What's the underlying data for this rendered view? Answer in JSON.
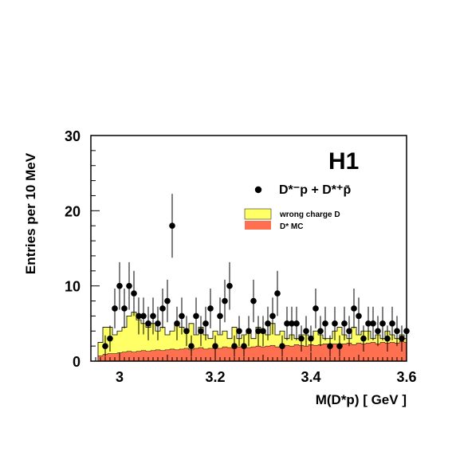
{
  "chart_data": {
    "type": "histogram",
    "experiment_label": "H1",
    "xlabel": "M(D*p) [ GeV ]",
    "ylabel": "Entries per 10 MeV",
    "xlim": [
      2.94,
      3.6
    ],
    "ylim": [
      0,
      30
    ],
    "x_ticks": [
      {
        "value": 3.0,
        "label": "3"
      },
      {
        "value": 3.2,
        "label": "3.2"
      },
      {
        "value": 3.4,
        "label": "3.4"
      },
      {
        "value": 3.6,
        "label": "3.6"
      }
    ],
    "y_ticks": [
      {
        "value": 0,
        "label": "0"
      },
      {
        "value": 10,
        "label": "10"
      },
      {
        "value": 20,
        "label": "20"
      },
      {
        "value": 30,
        "label": "30"
      }
    ],
    "legend": {
      "data": "D*⁻p + D*⁺p̄",
      "wrong_charge": "wrong charge D",
      "mc": "D* MC"
    },
    "colors": {
      "wrong_charge_fill": "#ffff66",
      "mc_fill": "#ff7050",
      "data_marker": "#000000"
    },
    "bin_edges": [
      2.955,
      2.965,
      2.975,
      2.985,
      2.995,
      3.005,
      3.015,
      3.025,
      3.035,
      3.045,
      3.055,
      3.065,
      3.075,
      3.085,
      3.095,
      3.105,
      3.115,
      3.125,
      3.135,
      3.145,
      3.155,
      3.165,
      3.175,
      3.185,
      3.195,
      3.205,
      3.215,
      3.225,
      3.235,
      3.245,
      3.255,
      3.265,
      3.275,
      3.285,
      3.295,
      3.305,
      3.315,
      3.325,
      3.335,
      3.345,
      3.355,
      3.365,
      3.375,
      3.385,
      3.395,
      3.405,
      3.415,
      3.425,
      3.435,
      3.445,
      3.455,
      3.465,
      3.475,
      3.485,
      3.495,
      3.505,
      3.515,
      3.525,
      3.535,
      3.545,
      3.555,
      3.565,
      3.575,
      3.585,
      3.595,
      3.6
    ],
    "wrong_charge": [
      2.5,
      4.5,
      4.5,
      3.5,
      4.0,
      4.5,
      6.0,
      6.5,
      5.5,
      5.0,
      4.5,
      5.0,
      4.0,
      4.5,
      3.5,
      4.0,
      5.0,
      4.5,
      4.0,
      5.0,
      3.5,
      4.5,
      3.5,
      3.0,
      4.0,
      3.5,
      4.0,
      3.0,
      4.5,
      3.0,
      3.5,
      4.0,
      3.0,
      4.5,
      4.0,
      3.5,
      5.0,
      3.5,
      4.0,
      3.0,
      3.5,
      3.0,
      3.5,
      3.5,
      3.0,
      4.0,
      3.5,
      3.0,
      3.0,
      4.0,
      4.5,
      3.5,
      3.0,
      4.5,
      3.5,
      4.0,
      4.0,
      3.0,
      3.5,
      3.0,
      4.0,
      3.5,
      3.0,
      3.5,
      3.0
    ],
    "mc": [
      0.7,
      0.9,
      1.0,
      1.0,
      1.1,
      1.2,
      1.3,
      1.2,
      1.3,
      1.4,
      1.3,
      1.4,
      1.5,
      1.4,
      1.5,
      1.6,
      1.5,
      1.6,
      1.7,
      1.5,
      1.7,
      1.8,
      1.6,
      1.7,
      1.8,
      1.7,
      1.9,
      1.8,
      1.7,
      1.9,
      2.0,
      1.8,
      1.9,
      2.0,
      1.9,
      2.0,
      2.1,
      1.9,
      2.0,
      2.1,
      2.0,
      2.2,
      2.1,
      2.0,
      2.2,
      2.1,
      2.2,
      2.3,
      2.1,
      2.3,
      2.2,
      2.3,
      2.4,
      2.2,
      2.4,
      2.3,
      2.4,
      2.5,
      2.3,
      2.5,
      2.4,
      2.5,
      2.4,
      2.6,
      2.5
    ],
    "data_points": [
      {
        "x": 2.97,
        "y": 2
      },
      {
        "x": 2.98,
        "y": 3
      },
      {
        "x": 2.99,
        "y": 7
      },
      {
        "x": 3.0,
        "y": 10
      },
      {
        "x": 3.01,
        "y": 7
      },
      {
        "x": 3.02,
        "y": 10
      },
      {
        "x": 3.03,
        "y": 9
      },
      {
        "x": 3.04,
        "y": 6
      },
      {
        "x": 3.05,
        "y": 6
      },
      {
        "x": 3.06,
        "y": 5
      },
      {
        "x": 3.07,
        "y": 6
      },
      {
        "x": 3.08,
        "y": 5
      },
      {
        "x": 3.09,
        "y": 7
      },
      {
        "x": 3.1,
        "y": 8
      },
      {
        "x": 3.11,
        "y": 18
      },
      {
        "x": 3.12,
        "y": 5
      },
      {
        "x": 3.13,
        "y": 6
      },
      {
        "x": 3.14,
        "y": 4
      },
      {
        "x": 3.15,
        "y": 2
      },
      {
        "x": 3.16,
        "y": 6
      },
      {
        "x": 3.17,
        "y": 4
      },
      {
        "x": 3.18,
        "y": 5
      },
      {
        "x": 3.19,
        "y": 7
      },
      {
        "x": 3.2,
        "y": 2
      },
      {
        "x": 3.21,
        "y": 6
      },
      {
        "x": 3.22,
        "y": 8
      },
      {
        "x": 3.23,
        "y": 10
      },
      {
        "x": 3.24,
        "y": 2
      },
      {
        "x": 3.25,
        "y": 4
      },
      {
        "x": 3.26,
        "y": 2
      },
      {
        "x": 3.27,
        "y": 4
      },
      {
        "x": 3.28,
        "y": 8
      },
      {
        "x": 3.29,
        "y": 4
      },
      {
        "x": 3.3,
        "y": 4
      },
      {
        "x": 3.31,
        "y": 5
      },
      {
        "x": 3.32,
        "y": 6
      },
      {
        "x": 3.33,
        "y": 9
      },
      {
        "x": 3.34,
        "y": 2
      },
      {
        "x": 3.35,
        "y": 5
      },
      {
        "x": 3.36,
        "y": 5
      },
      {
        "x": 3.37,
        "y": 5
      },
      {
        "x": 3.38,
        "y": 3
      },
      {
        "x": 3.39,
        "y": 4
      },
      {
        "x": 3.4,
        "y": 3
      },
      {
        "x": 3.41,
        "y": 7
      },
      {
        "x": 3.42,
        "y": 4
      },
      {
        "x": 3.43,
        "y": 5
      },
      {
        "x": 3.44,
        "y": 2
      },
      {
        "x": 3.45,
        "y": 5
      },
      {
        "x": 3.46,
        "y": 2
      },
      {
        "x": 3.47,
        "y": 5
      },
      {
        "x": 3.48,
        "y": 4
      },
      {
        "x": 3.49,
        "y": 7
      },
      {
        "x": 3.5,
        "y": 6
      },
      {
        "x": 3.51,
        "y": 3
      },
      {
        "x": 3.52,
        "y": 5
      },
      {
        "x": 3.53,
        "y": 5
      },
      {
        "x": 3.54,
        "y": 4
      },
      {
        "x": 3.55,
        "y": 5
      },
      {
        "x": 3.56,
        "y": 3
      },
      {
        "x": 3.57,
        "y": 5
      },
      {
        "x": 3.58,
        "y": 4
      },
      {
        "x": 3.59,
        "y": 3
      },
      {
        "x": 3.6,
        "y": 4
      }
    ]
  }
}
